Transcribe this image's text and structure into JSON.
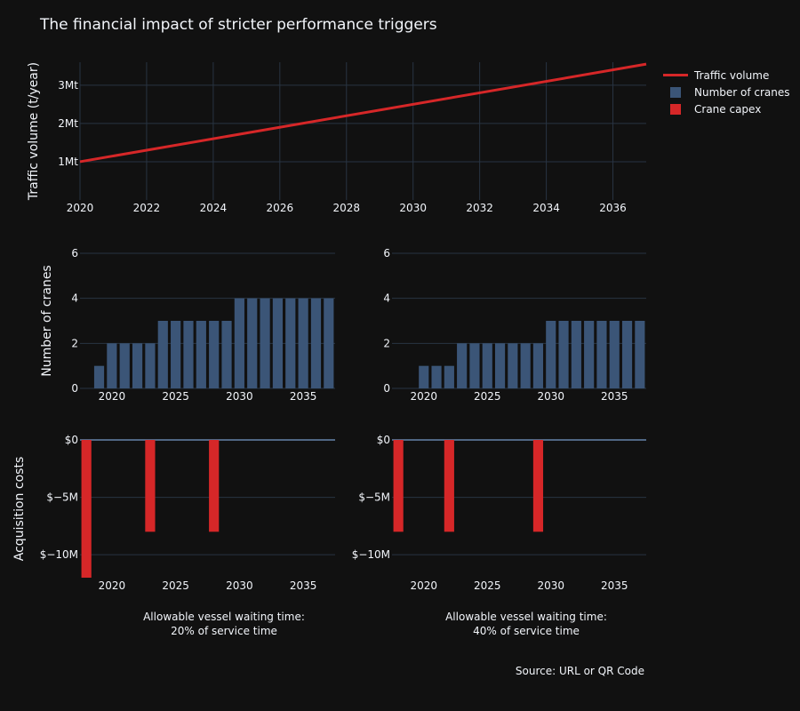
{
  "title": "The financial impact of stricter performance triggers",
  "source": "Source: URL or QR Code",
  "colors": {
    "background": "#111111",
    "grid": "#283442",
    "traffic": "#d62728",
    "cranes": "#3b5577",
    "capex": "#d62728",
    "text": "#f2f5fa"
  },
  "legend": [
    {
      "label": "Traffic volume",
      "kind": "line",
      "color": "#d62728"
    },
    {
      "label": "Number of cranes",
      "kind": "box",
      "color": "#3b5577"
    },
    {
      "label": "Crane capex",
      "kind": "box",
      "color": "#d62728"
    }
  ],
  "captions": {
    "left": "Allowable vessel waiting time:\n20% of service time",
    "right": "Allowable vessel waiting time:\n40% of service time"
  },
  "chart_data": [
    {
      "id": "traffic",
      "type": "line",
      "ylabel": "Traffic volume (t/year)",
      "xlim": [
        2020,
        2037
      ],
      "xticks": [
        2020,
        2022,
        2024,
        2026,
        2028,
        2030,
        2032,
        2034,
        2036
      ],
      "ylim": [
        0,
        3.6
      ],
      "yticks": [
        1,
        2,
        3
      ],
      "ytick_labels": [
        "1Mt",
        "2Mt",
        "3Mt"
      ],
      "series": [
        {
          "name": "Traffic volume",
          "x": [
            2020,
            2037
          ],
          "y": [
            1.0,
            3.55
          ]
        }
      ]
    },
    {
      "id": "cranes-20",
      "type": "bar",
      "ylabel": "Number of cranes",
      "xticks": [
        2020,
        2025,
        2030,
        2035
      ],
      "yticks": [
        0,
        2,
        4,
        6
      ],
      "ylim": [
        0,
        6
      ],
      "x": [
        2018,
        2019,
        2020,
        2021,
        2022,
        2023,
        2024,
        2025,
        2026,
        2027,
        2028,
        2029,
        2030,
        2031,
        2032,
        2033,
        2034,
        2035,
        2036,
        2037
      ],
      "values": [
        0,
        1,
        2,
        2,
        2,
        2,
        3,
        3,
        3,
        3,
        3,
        3,
        4,
        4,
        4,
        4,
        4,
        4,
        4,
        4
      ]
    },
    {
      "id": "cranes-40",
      "type": "bar",
      "ylabel": "",
      "xticks": [
        2020,
        2025,
        2030,
        2035
      ],
      "yticks": [
        0,
        2,
        4,
        6
      ],
      "ylim": [
        0,
        6
      ],
      "x": [
        2018,
        2019,
        2020,
        2021,
        2022,
        2023,
        2024,
        2025,
        2026,
        2027,
        2028,
        2029,
        2030,
        2031,
        2032,
        2033,
        2034,
        2035,
        2036,
        2037
      ],
      "values": [
        0,
        0,
        1,
        1,
        1,
        2,
        2,
        2,
        2,
        2,
        2,
        2,
        3,
        3,
        3,
        3,
        3,
        3,
        3,
        3
      ]
    },
    {
      "id": "capex-20",
      "type": "bar",
      "ylabel": "Acquisition costs",
      "xticks": [
        2020,
        2025,
        2030,
        2035
      ],
      "yticks": [
        0,
        -5,
        -10
      ],
      "ytick_labels": [
        "$0",
        "$−5M",
        "$−10M"
      ],
      "ylim": [
        -12,
        0
      ],
      "x": [
        2018,
        2023,
        2028
      ],
      "values": [
        -12,
        -8,
        -8
      ]
    },
    {
      "id": "capex-40",
      "type": "bar",
      "ylabel": "",
      "xticks": [
        2020,
        2025,
        2030,
        2035
      ],
      "yticks": [
        0,
        -5,
        -10
      ],
      "ytick_labels": [
        "$0",
        "$−5M",
        "$−10M"
      ],
      "ylim": [
        -12,
        0
      ],
      "x": [
        2018,
        2022,
        2029
      ],
      "values": [
        -8,
        -8,
        -8
      ]
    }
  ]
}
